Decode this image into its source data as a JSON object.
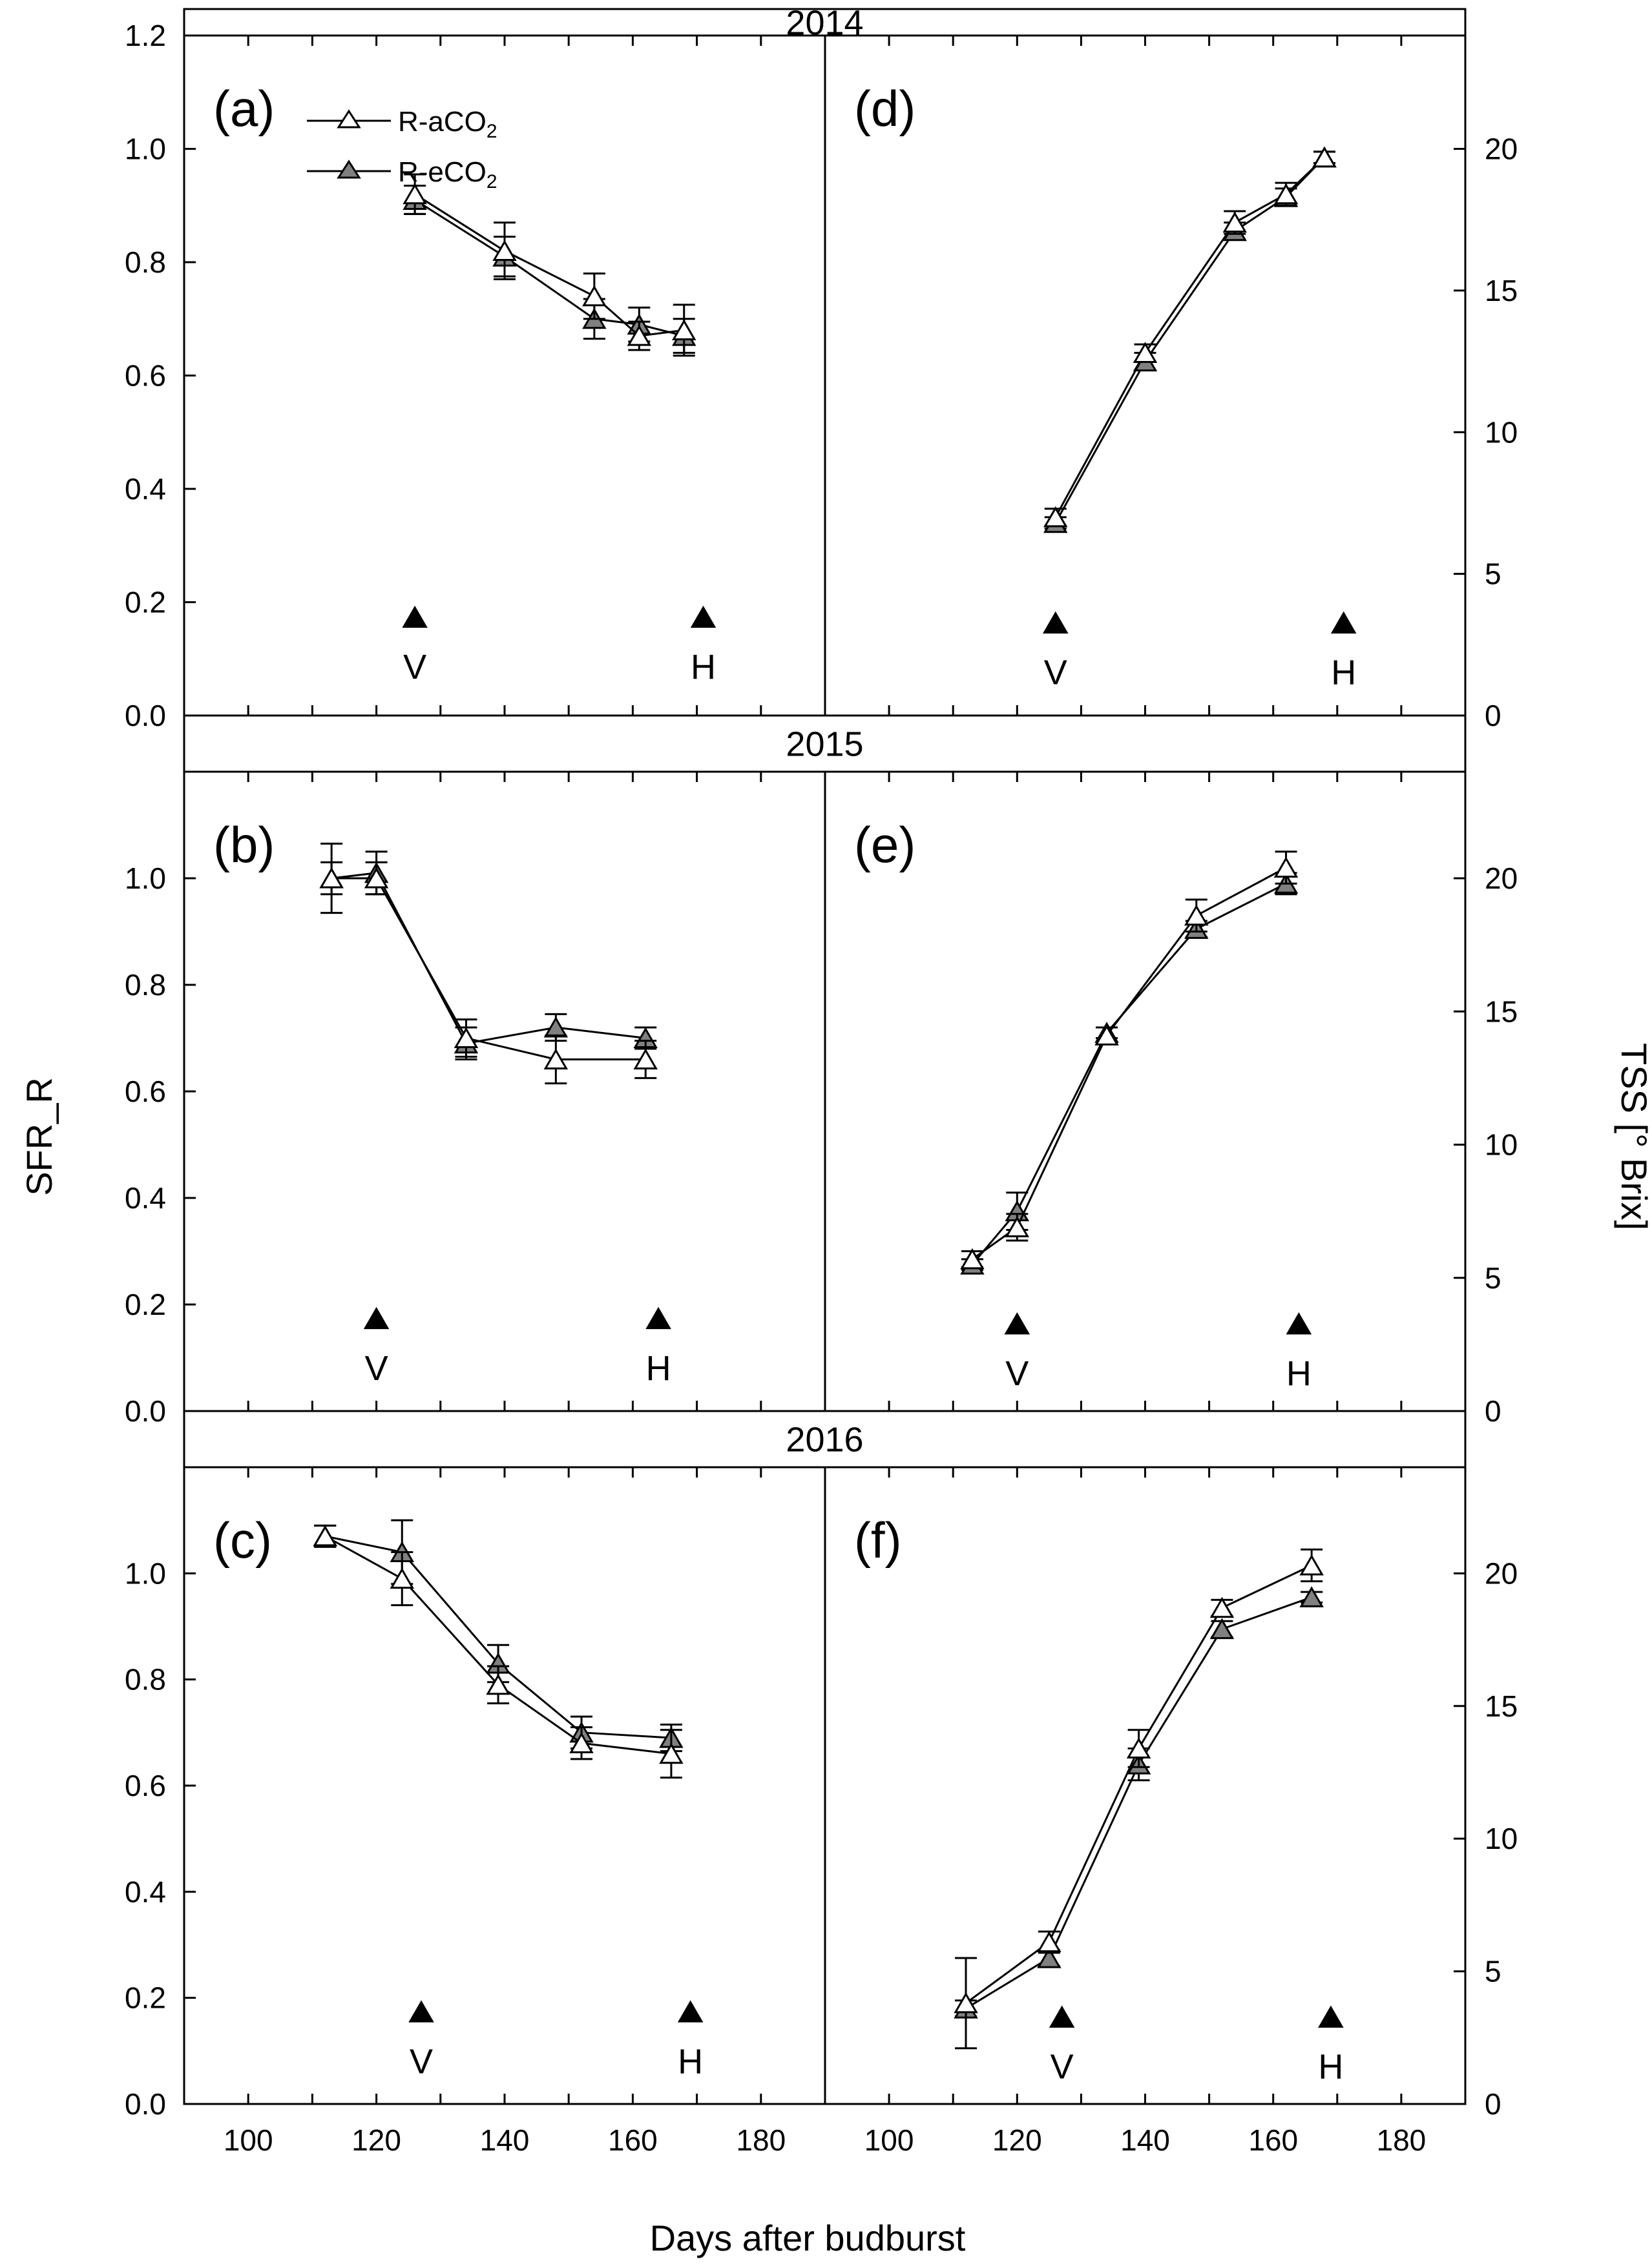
{
  "figure": {
    "xlabel": "Days after budburst",
    "ylabel_left": "SFR_R",
    "ylabel_right": "TSS [° Brix]",
    "x_ticks": [
      100,
      120,
      140,
      160,
      180
    ],
    "x_range": [
      90,
      190
    ],
    "left_range": [
      0,
      1.2
    ],
    "right_range": [
      0,
      24
    ]
  },
  "legend": {
    "items": [
      {
        "base": "R-aCO",
        "sub": "2",
        "fill": "#ffffff"
      },
      {
        "base": "R-eCO",
        "sub": "2",
        "fill": "#808080"
      }
    ]
  },
  "colors": {
    "aCO2": "#ffffff",
    "eCO2": "#808080",
    "stroke": "#000000"
  },
  "chart_data": [
    {
      "year": "2014",
      "panels": [
        {
          "label": "(a)",
          "type": "line",
          "axis": "left",
          "ylabel": "SFR_R",
          "ylim": [
            0,
            1.2
          ],
          "yticks": [
            "0.0",
            "0.2",
            "0.4",
            "0.6",
            "0.8",
            "1.0",
            "1.2"
          ],
          "series": [
            {
              "name": "R-aCO2",
              "x": [
                126,
                140,
                154,
                161,
                168
              ],
              "y": [
                0.92,
                0.82,
                0.74,
                0.67,
                0.68
              ],
              "err": [
                0.035,
                0.05,
                0.04,
                0.025,
                0.045
              ]
            },
            {
              "name": "R-eCO2",
              "x": [
                126,
                140,
                154,
                161,
                168
              ],
              "y": [
                0.91,
                0.81,
                0.7,
                0.69,
                0.67
              ],
              "err": [
                0.025,
                0.035,
                0.035,
                0.03,
                0.03
              ]
            }
          ],
          "markers": {
            "veraison": 126,
            "harvest": 171,
            "labels": [
              "V",
              "H"
            ],
            "y": 0.17
          }
        },
        {
          "label": "(d)",
          "type": "line",
          "axis": "right",
          "ylabel": "TSS [° Brix]",
          "ylim": [
            0,
            24
          ],
          "yticks": [
            "0",
            "5",
            "10",
            "15",
            "20"
          ],
          "series": [
            {
              "name": "R-aCO2",
              "x": [
                126,
                140,
                154,
                162,
                168
              ],
              "y": [
                7.0,
                12.8,
                17.4,
                18.4,
                19.7
              ],
              "err": [
                0.3,
                0.3,
                0.4,
                0.4,
                0.2
              ]
            },
            {
              "name": "R-eCO2",
              "x": [
                126,
                140,
                154,
                162,
                168
              ],
              "y": [
                6.8,
                12.5,
                17.1,
                18.3,
                19.7
              ],
              "err": [
                0.2,
                0.3,
                0.3,
                0.3,
                0.2
              ]
            }
          ],
          "markers": {
            "veraison": 126,
            "harvest": 171,
            "labels": [
              "V",
              "H"
            ],
            "y": 3.2
          }
        }
      ]
    },
    {
      "year": "2015",
      "panels": [
        {
          "label": "(b)",
          "type": "line",
          "axis": "left",
          "ylabel": "SFR_R",
          "ylim": [
            0,
            1.2
          ],
          "yticks": [
            "0.0",
            "0.2",
            "0.4",
            "0.6",
            "0.8",
            "1.0"
          ],
          "series": [
            {
              "name": "R-aCO2",
              "x": [
                113,
                120,
                134,
                148,
                162
              ],
              "y": [
                1.0,
                1.0,
                0.7,
                0.66,
                0.66
              ],
              "err": [
                0.065,
                0.03,
                0.035,
                0.045,
                0.035
              ]
            },
            {
              "name": "R-eCO2",
              "x": [
                113,
                120,
                134,
                148,
                162
              ],
              "y": [
                1.0,
                1.01,
                0.69,
                0.72,
                0.7
              ],
              "err": [
                0.03,
                0.04,
                0.03,
                0.025,
                0.02
              ]
            }
          ],
          "markers": {
            "veraison": 120,
            "harvest": 164,
            "labels": [
              "V",
              "H"
            ],
            "y": 0.17
          }
        },
        {
          "label": "(e)",
          "type": "line",
          "axis": "right",
          "ylabel": "TSS [° Brix]",
          "ylim": [
            0,
            24
          ],
          "yticks": [
            "0",
            "5",
            "10",
            "15",
            "20"
          ],
          "series": [
            {
              "name": "R-aCO2",
              "x": [
                113,
                120,
                134,
                148,
                162
              ],
              "y": [
                5.7,
                6.9,
                14.1,
                18.6,
                20.4
              ],
              "err": [
                0.3,
                0.5,
                0.3,
                0.6,
                0.6
              ]
            },
            {
              "name": "R-eCO2",
              "x": [
                113,
                120,
                134,
                148,
                162
              ],
              "y": [
                5.5,
                7.5,
                14.2,
                18.1,
                19.8
              ],
              "err": [
                0.2,
                0.7,
                0.2,
                0.3,
                0.4
              ]
            }
          ],
          "markers": {
            "veraison": 120,
            "harvest": 164,
            "labels": [
              "V",
              "H"
            ],
            "y": 3.2
          }
        }
      ]
    },
    {
      "year": "2016",
      "panels": [
        {
          "label": "(c)",
          "type": "line",
          "axis": "left",
          "ylabel": "SFR_R",
          "ylim": [
            0,
            1.2
          ],
          "yticks": [
            "0.0",
            "0.2",
            "0.4",
            "0.6",
            "0.8",
            "1.0"
          ],
          "series": [
            {
              "name": "R-aCO2",
              "x": [
                112,
                124,
                139,
                152,
                166
              ],
              "y": [
                1.07,
                0.99,
                0.79,
                0.68,
                0.66
              ],
              "err": [
                0.02,
                0.05,
                0.035,
                0.03,
                0.045
              ]
            },
            {
              "name": "R-eCO2",
              "x": [
                112,
                124,
                139,
                152,
                166
              ],
              "y": [
                1.07,
                1.04,
                0.83,
                0.7,
                0.69
              ],
              "err": [
                0.02,
                0.06,
                0.035,
                0.03,
                0.025
              ]
            }
          ],
          "markers": {
            "veraison": 127,
            "harvest": 169,
            "labels": [
              "V",
              "H"
            ],
            "y": 0.17
          }
        },
        {
          "label": "(f)",
          "type": "line",
          "axis": "right",
          "ylabel": "TSS [° Brix]",
          "ylim": [
            0,
            24
          ],
          "yticks": [
            "0",
            "5",
            "10",
            "15",
            "20"
          ],
          "series": [
            {
              "name": "R-aCO2",
              "x": [
                112,
                125,
                139,
                152,
                166
              ],
              "y": [
                3.8,
                6.1,
                13.4,
                18.7,
                20.3
              ],
              "err": [
                1.7,
                0.4,
                0.7,
                0.3,
                0.6
              ]
            },
            {
              "name": "R-eCO2",
              "x": [
                112,
                125,
                139,
                152,
                166
              ],
              "y": [
                3.6,
                5.5,
                12.8,
                17.9,
                19.1
              ],
              "err": [
                0.3,
                0.3,
                0.6,
                0.3,
                0.2
              ]
            }
          ],
          "markers": {
            "veraison": 127,
            "harvest": 169,
            "labels": [
              "V",
              "H"
            ],
            "y": 3.2
          }
        }
      ]
    }
  ]
}
